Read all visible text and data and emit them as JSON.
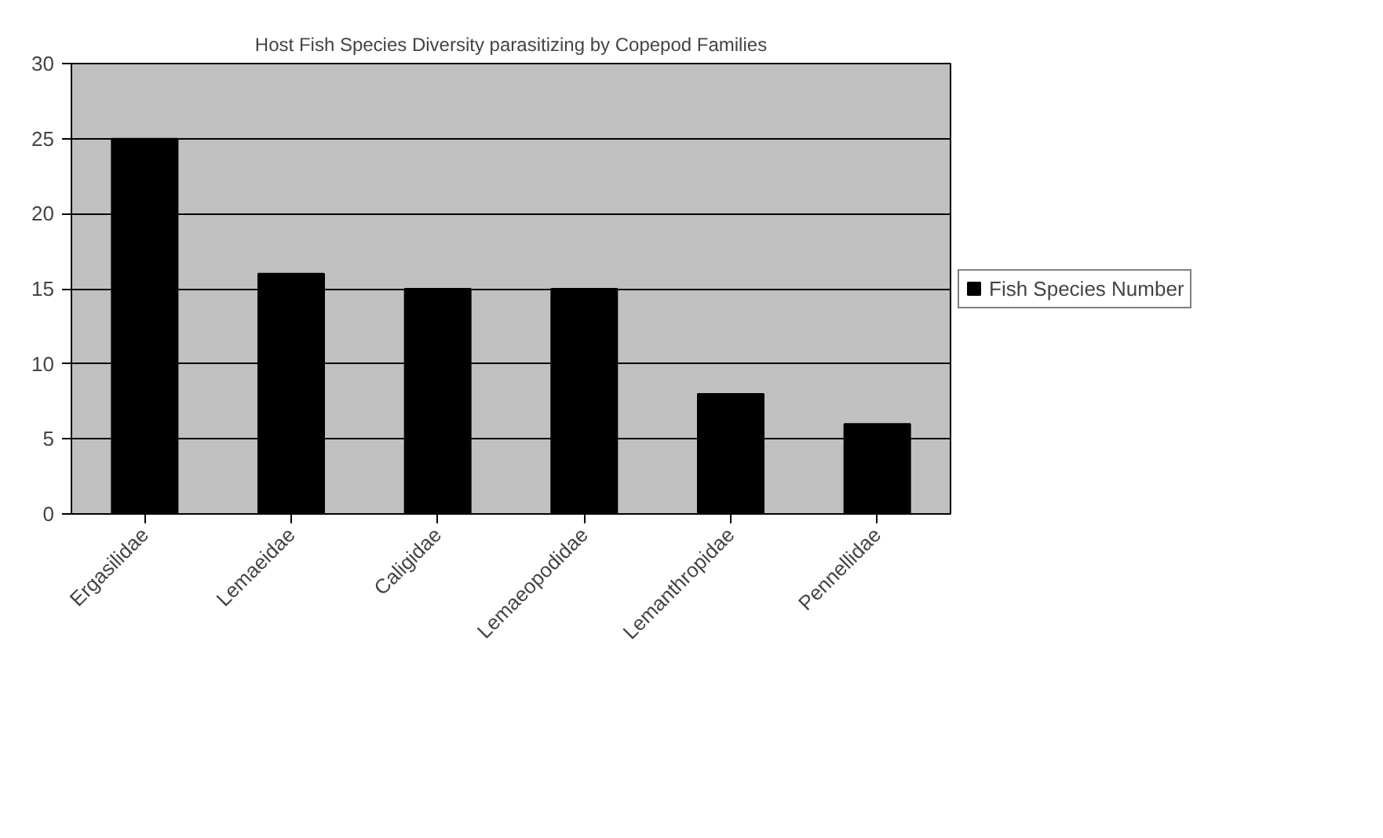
{
  "chart_data": {
    "type": "bar",
    "title": "Host Fish Species Diversity parasitizing by Copepod Families",
    "categories": [
      "Ergasilidae",
      "Lemaeidae",
      "Caligidae",
      "Lemaeopodidae",
      "Lemanthropidae",
      "Pennellidae"
    ],
    "series": [
      {
        "name": "Fish Species Number",
        "color": "#000000",
        "values": [
          25,
          16,
          15,
          15,
          8,
          6
        ]
      }
    ],
    "ylim": [
      0,
      30
    ],
    "yticks": [
      0,
      5,
      10,
      15,
      20,
      25,
      30
    ],
    "grid": "y",
    "legend": "right"
  }
}
